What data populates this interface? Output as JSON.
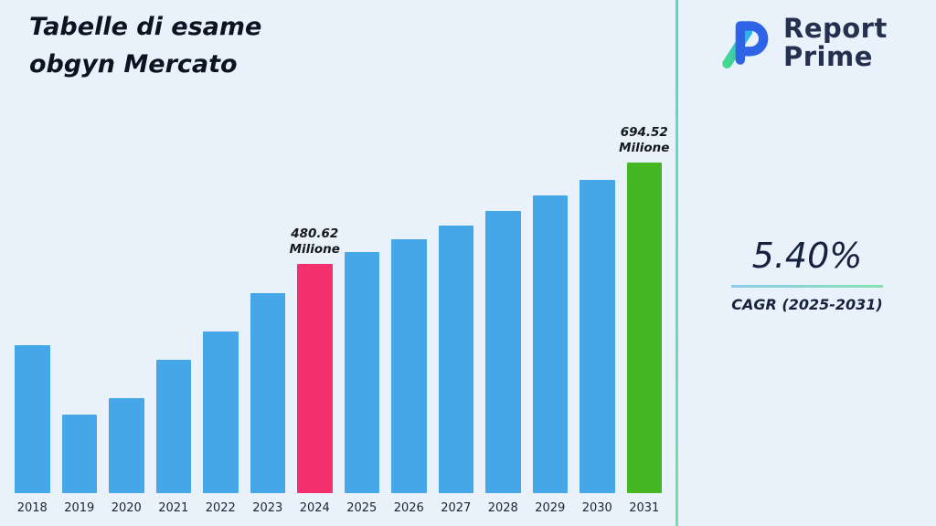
{
  "header": {
    "title": "Tabelle di esame\nobgyn Mercato",
    "logo": {
      "name": "Report Prime",
      "line1": "Report",
      "line2": "Prime"
    }
  },
  "cagr": {
    "value": "5.40%",
    "label": "CAGR (2025-2031)"
  },
  "colors": {
    "background": "#e9f1fb",
    "bar_default": "#45a6e8",
    "bar_2024": "#f5306e",
    "bar_2031": "#45b722",
    "divider_teal": "#5ad7c9",
    "navy": "#16213e"
  },
  "chart_data": {
    "type": "bar",
    "title": "Tabelle di esame obgyn Mercato",
    "xlabel": "",
    "ylabel": "",
    "unit": "Milione",
    "grid": false,
    "legend": false,
    "ylim": [
      0,
      720
    ],
    "categories": [
      "2018",
      "2019",
      "2020",
      "2021",
      "2022",
      "2023",
      "2024",
      "2025",
      "2026",
      "2027",
      "2028",
      "2029",
      "2030",
      "2031"
    ],
    "values": [
      310,
      165,
      200,
      280,
      340,
      420,
      480.62,
      506.58,
      533.94,
      562.77,
      593.16,
      625.19,
      658.95,
      694.52
    ],
    "bar_color_default": "#45a6e8",
    "bar_colors": {
      "2024": "#f5306e",
      "2031": "#45b722"
    },
    "annotations": [
      {
        "category": "2024",
        "text": "480.62\nMilione"
      },
      {
        "category": "2031",
        "text": "694.52\nMilione"
      }
    ]
  }
}
